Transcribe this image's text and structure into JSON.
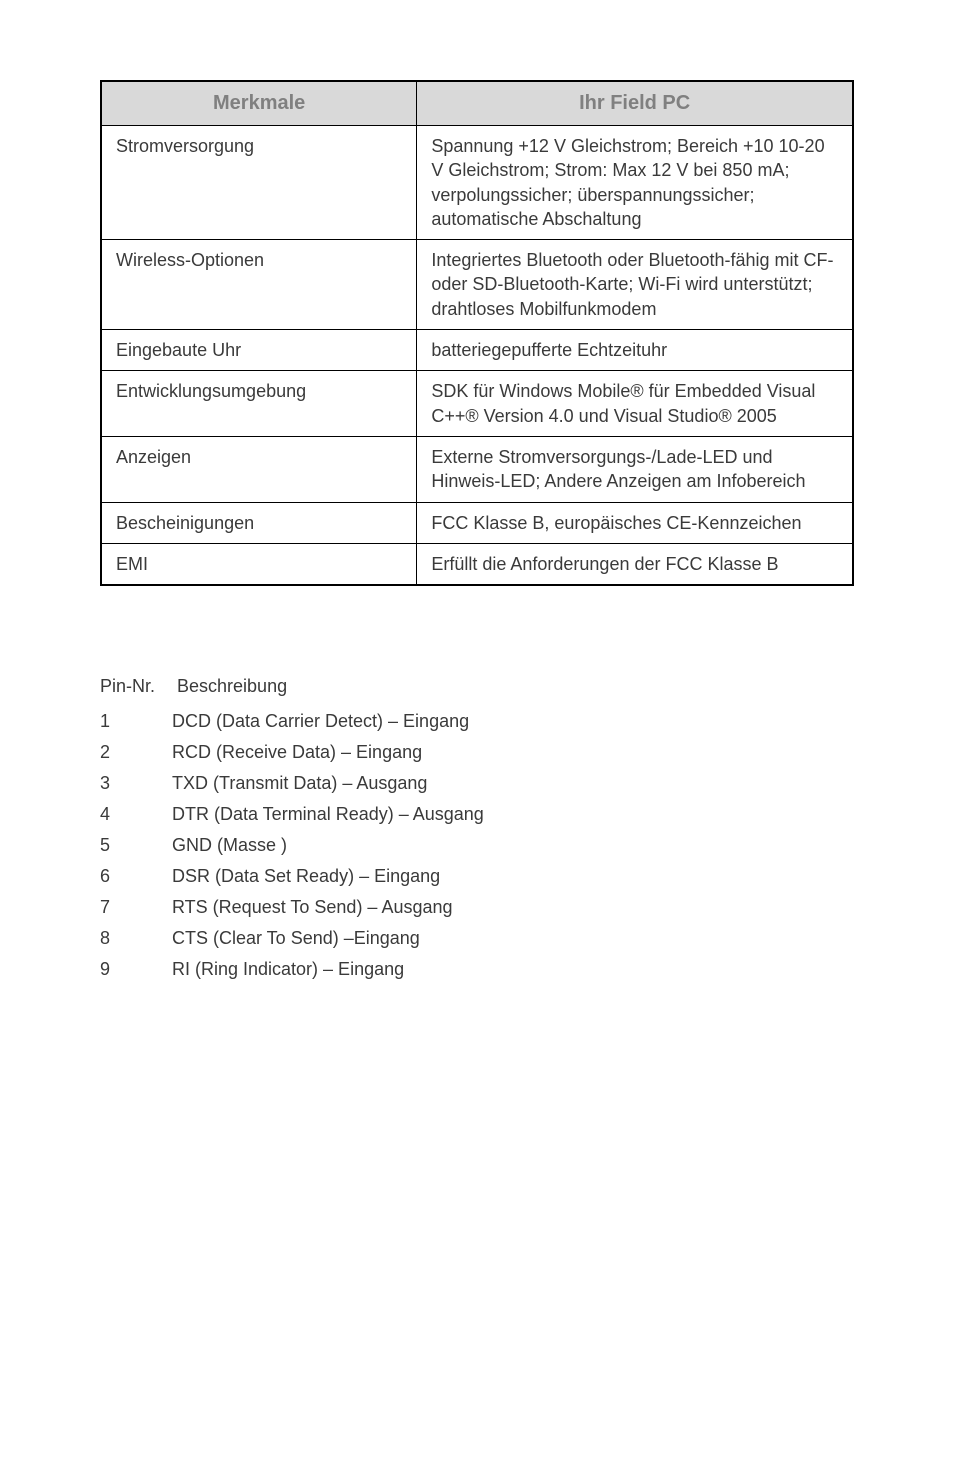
{
  "table": {
    "headers": [
      "Merkmale",
      "Ihr Field PC"
    ],
    "rows": [
      [
        "Stromversorgung",
        "Spannung +12 V Gleichstrom; Bereich +10 10-20 V Gleichstrom; Strom: Max 12 V bei 850 mA; verpolungssicher; überspannungssicher; automatische Abschaltung"
      ],
      [
        "Wireless-Optionen",
        "Integriertes Bluetooth oder Bluetooth-fähig mit CF- oder SD-Bluetooth-Karte; Wi-Fi wird unterstützt; drahtloses Mobilfunkmodem"
      ],
      [
        "Eingebaute Uhr",
        "batteriegepufferte Echtzeituhr"
      ],
      [
        "Entwicklungsumgebung",
        "SDK für Windows Mobile® für Embedded Visual C++® Version 4.0 und Visual Studio® 2005"
      ],
      [
        "Anzeigen",
        "Externe Stromversorgungs-/Lade-LED und Hinweis-LED; Andere Anzeigen am Infobereich"
      ],
      [
        "Bescheinigungen",
        "FCC Klasse B, europäisches CE-Kennzeichen"
      ],
      [
        "EMI",
        "Erfüllt die Anforderungen der FCC Klasse B"
      ]
    ]
  },
  "pins": {
    "header_left": "Pin-Nr.",
    "header_right": "Beschreibung",
    "items": [
      {
        "num": "1",
        "desc": "DCD (Data Carrier Detect) – Eingang"
      },
      {
        "num": "2",
        "desc": "RCD (Receive Data) – Eingang"
      },
      {
        "num": "3",
        "desc": "TXD (Transmit Data) – Ausgang"
      },
      {
        "num": "4",
        "desc": "DTR (Data Terminal Ready) – Ausgang"
      },
      {
        "num": "5",
        "desc": "GND (Masse )"
      },
      {
        "num": "6",
        "desc": "DSR (Data Set Ready) – Eingang"
      },
      {
        "num": "7",
        "desc": "RTS (Request To Send) – Ausgang"
      },
      {
        "num": "8",
        "desc": "CTS (Clear To Send) –Eingang"
      },
      {
        "num": "9",
        "desc": "RI (Ring Indicator) – Eingang"
      }
    ]
  }
}
